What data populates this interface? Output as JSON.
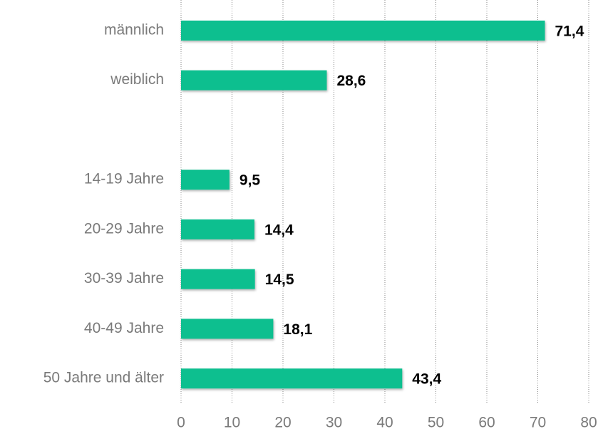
{
  "chart_data": {
    "type": "bar",
    "orientation": "horizontal",
    "categories": [
      "männlich",
      "weiblich",
      null,
      "14-19 Jahre",
      "20-29 Jahre",
      "30-39 Jahre",
      "40-49 Jahre",
      "50 Jahre und älter"
    ],
    "values": [
      71.4,
      28.6,
      null,
      9.5,
      14.4,
      14.5,
      18.1,
      43.4
    ],
    "value_labels": [
      "71,4",
      "28,6",
      null,
      "9,5",
      "14,4",
      "14,5",
      "18,1",
      "43,4"
    ],
    "color": "#0fbf8f",
    "xlim": [
      0,
      80
    ],
    "xticks": [
      0,
      10,
      20,
      30,
      40,
      50,
      60,
      70,
      80
    ],
    "grid": true
  }
}
